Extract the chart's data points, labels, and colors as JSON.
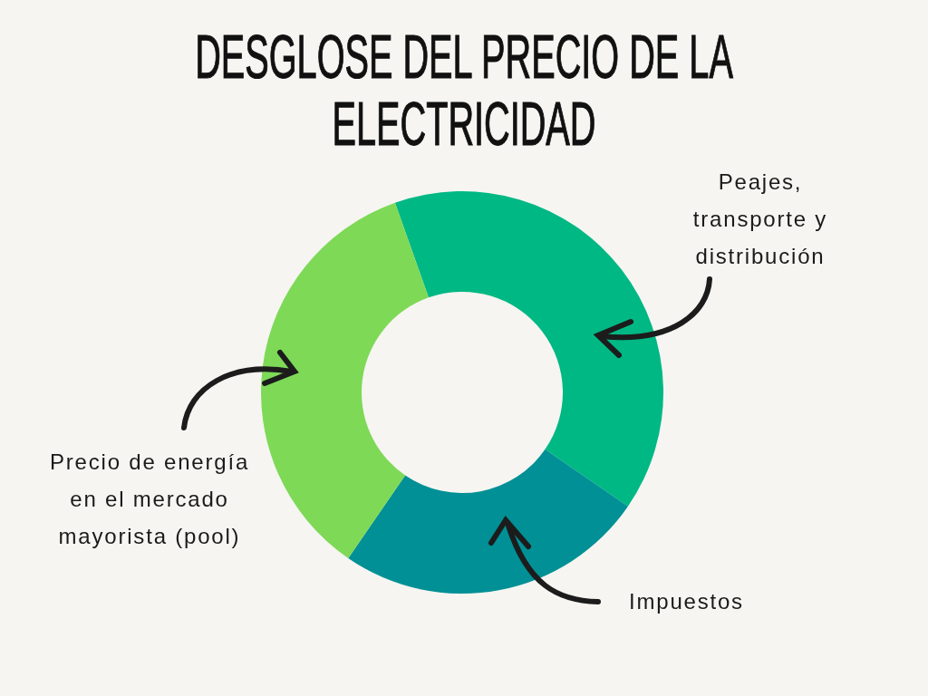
{
  "chart_data": {
    "type": "donut",
    "title": "DESGLOSE DEL PRECIO DE LA ELECTRICIDAD",
    "categories": [
      "Peajes, transporte y distribución",
      "Impuestos",
      "Precio de energía en el mercado mayorista (pool)"
    ],
    "values": [
      40,
      25,
      35
    ],
    "colors": [
      "#00b884",
      "#009096",
      "#7ed957"
    ]
  }
}
